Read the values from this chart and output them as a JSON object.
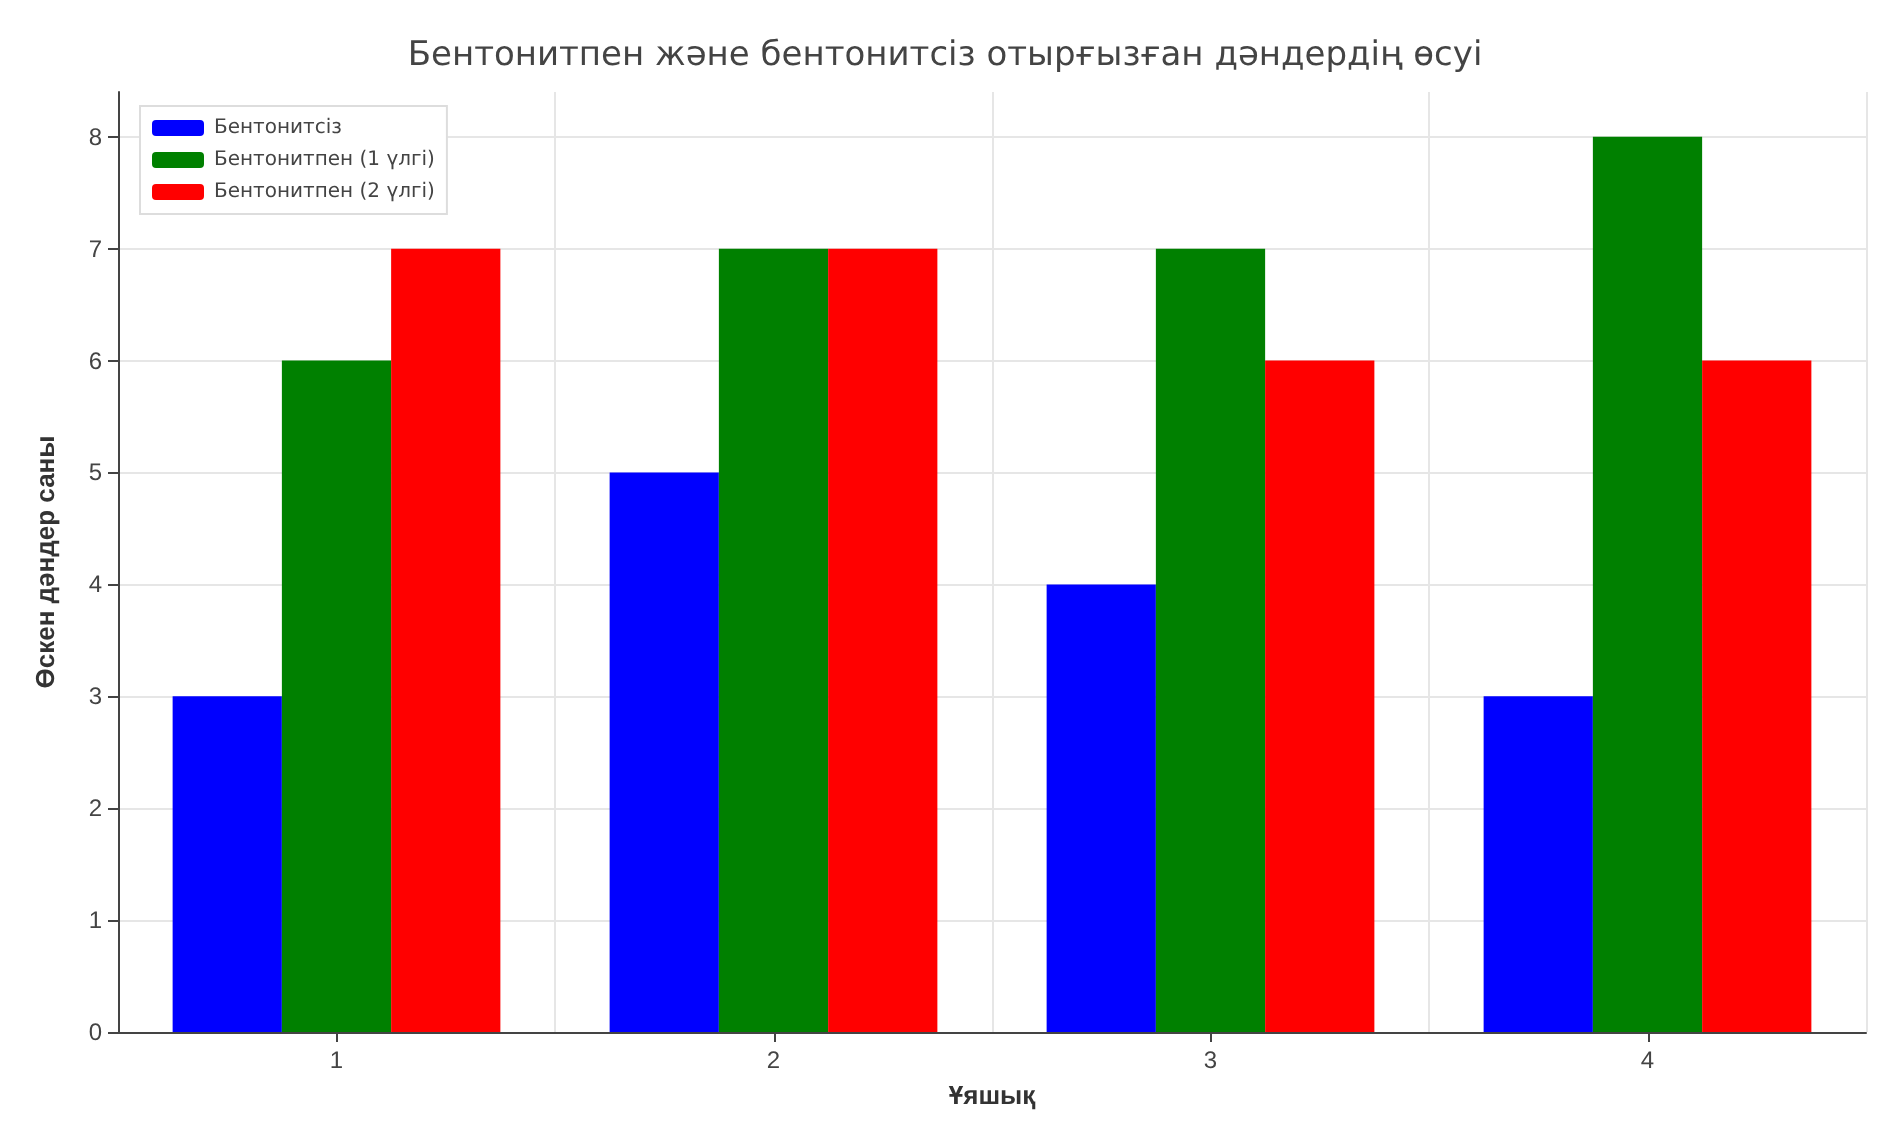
{
  "chart_data": {
    "type": "bar",
    "title": "Бентонитпен және бентонитсіз отырғызған дәндердің өсуі",
    "xlabel": "Ұяшық",
    "ylabel": "Өскен дәндер саны",
    "categories": [
      "1",
      "2",
      "3",
      "4"
    ],
    "series": [
      {
        "name": "Бентонитсіз",
        "color": "#0000ff",
        "values": [
          3,
          5,
          4,
          3
        ]
      },
      {
        "name": "Бентонитпен (1 үлгі)",
        "color": "#008000",
        "values": [
          6,
          7,
          7,
          8
        ]
      },
      {
        "name": "Бентонитпен (2 үлгі)",
        "color": "#ff0000",
        "values": [
          7,
          7,
          6,
          6
        ]
      }
    ],
    "ylim": [
      0,
      8.4
    ],
    "yticks": [
      0,
      1,
      2,
      3,
      4,
      5,
      6,
      7,
      8
    ],
    "grid": true,
    "legend": "top left"
  }
}
